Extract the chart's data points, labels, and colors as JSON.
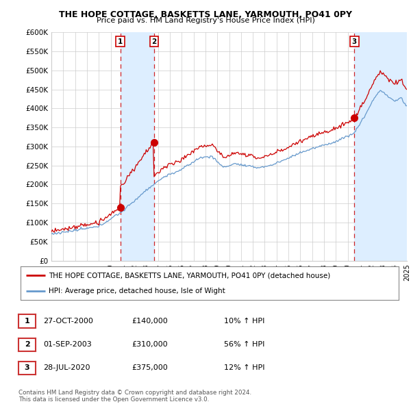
{
  "title": "THE HOPE COTTAGE, BASKETTS LANE, YARMOUTH, PO41 0PY",
  "subtitle": "Price paid vs. HM Land Registry's House Price Index (HPI)",
  "ylabel_ticks": [
    "£0",
    "£50K",
    "£100K",
    "£150K",
    "£200K",
    "£250K",
    "£300K",
    "£350K",
    "£400K",
    "£450K",
    "£500K",
    "£550K",
    "£600K"
  ],
  "ylim": [
    0,
    600000
  ],
  "ytick_values": [
    0,
    50000,
    100000,
    150000,
    200000,
    250000,
    300000,
    350000,
    400000,
    450000,
    500000,
    550000,
    600000
  ],
  "year_start": 1995,
  "year_end": 2025,
  "sale_dates": [
    2000.82,
    2003.67,
    2020.57
  ],
  "sale_prices": [
    140000,
    310000,
    375000
  ],
  "sale_labels": [
    "1",
    "2",
    "3"
  ],
  "red_line_color": "#cc0000",
  "blue_line_color": "#6699cc",
  "blue_shade_color": "#ddeeff",
  "sale_marker_color": "#cc0000",
  "dashed_line_color": "#cc0000",
  "legend_label_red": "THE HOPE COTTAGE, BASKETTS LANE, YARMOUTH, PO41 0PY (detached house)",
  "legend_label_blue": "HPI: Average price, detached house, Isle of Wight",
  "table_rows": [
    {
      "num": "1",
      "date": "27-OCT-2000",
      "price": "£140,000",
      "change": "10% ↑ HPI"
    },
    {
      "num": "2",
      "date": "01-SEP-2003",
      "price": "£310,000",
      "change": "56% ↑ HPI"
    },
    {
      "num": "3",
      "date": "28-JUL-2020",
      "price": "£375,000",
      "change": "12% ↑ HPI"
    }
  ],
  "footer": "Contains HM Land Registry data © Crown copyright and database right 2024.\nThis data is licensed under the Open Government Licence v3.0.",
  "background_color": "#ffffff",
  "grid_color": "#cccccc"
}
